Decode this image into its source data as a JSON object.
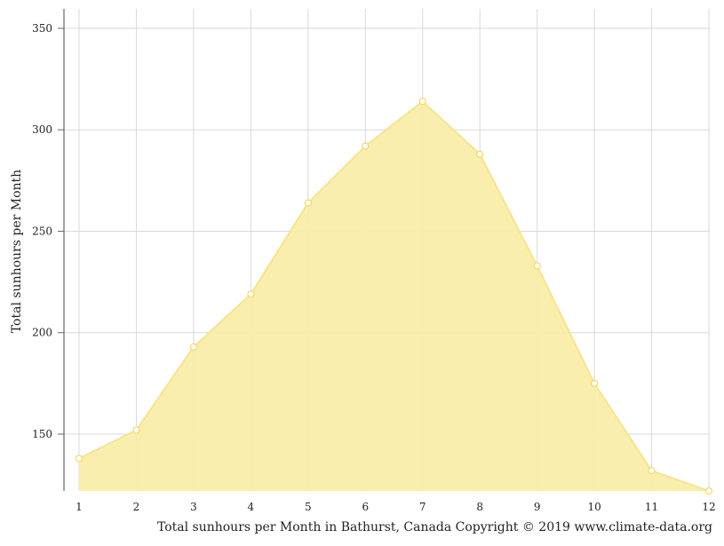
{
  "chart_data": {
    "type": "area",
    "x": [
      1,
      2,
      3,
      4,
      5,
      6,
      7,
      8,
      9,
      10,
      11,
      12
    ],
    "series": [
      {
        "values": [
          138,
          152,
          193,
          219,
          264,
          292,
          314,
          288,
          233,
          175,
          132,
          122
        ]
      }
    ],
    "xlabel": "Total sunhours per Month in Bathurst, Canada Copyright © 2019 www.climate-data.org",
    "ylabel": "Total sunhours per Month",
    "xlim": [
      1,
      12
    ],
    "ylim": [
      122,
      355
    ],
    "x_ticks": [
      "1",
      "2",
      "3",
      "4",
      "5",
      "6",
      "7",
      "8",
      "9",
      "10",
      "11",
      "12"
    ],
    "y_ticks": [
      150,
      200,
      250,
      300,
      350
    ],
    "grid": true,
    "colors": {
      "fill": "#f9eda9",
      "line": "#f7e58a",
      "marker_fill": "#ffffff",
      "marker_stroke": "#f2d968",
      "grid": "#d9d9d9",
      "axis": "#666666"
    }
  }
}
